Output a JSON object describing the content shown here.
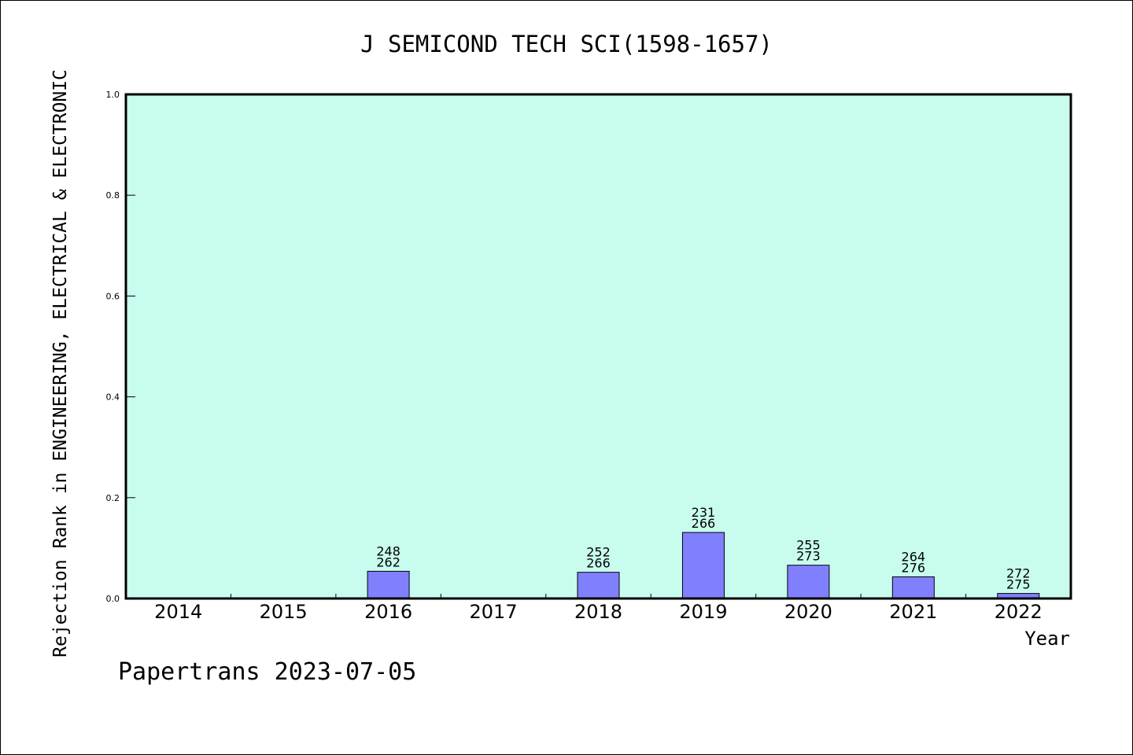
{
  "colors": {
    "plot_background": "#c8fcee",
    "bar_fill": "#8080ff",
    "bar_stroke": "#000000",
    "axis": "#000000"
  },
  "chart_data": {
    "type": "bar",
    "title": "J SEMICOND TECH SCI(1598-1657)",
    "xlabel": "Year",
    "ylabel": "Rejection Rank in ENGINEERING, ELECTRICAL & ELECTRONIC",
    "ylim": [
      0,
      1.0
    ],
    "yticks": [
      "0.0",
      "0.2",
      "0.4",
      "0.6",
      "0.8",
      "1.0"
    ],
    "grid": false,
    "categories": [
      "2014",
      "2015",
      "2016",
      "2017",
      "2018",
      "2019",
      "2020",
      "2021",
      "2022"
    ],
    "values": [
      null,
      null,
      0.054,
      null,
      0.052,
      0.131,
      0.066,
      0.043,
      0.01
    ],
    "bar_labels": [
      null,
      null,
      [
        "248",
        "262"
      ],
      null,
      [
        "252",
        "266"
      ],
      [
        "231",
        "266"
      ],
      [
        "255",
        "273"
      ],
      [
        "264",
        "276"
      ],
      [
        "272",
        "275"
      ]
    ]
  },
  "footer": {
    "text": "Papertrans 2023-07-05"
  }
}
